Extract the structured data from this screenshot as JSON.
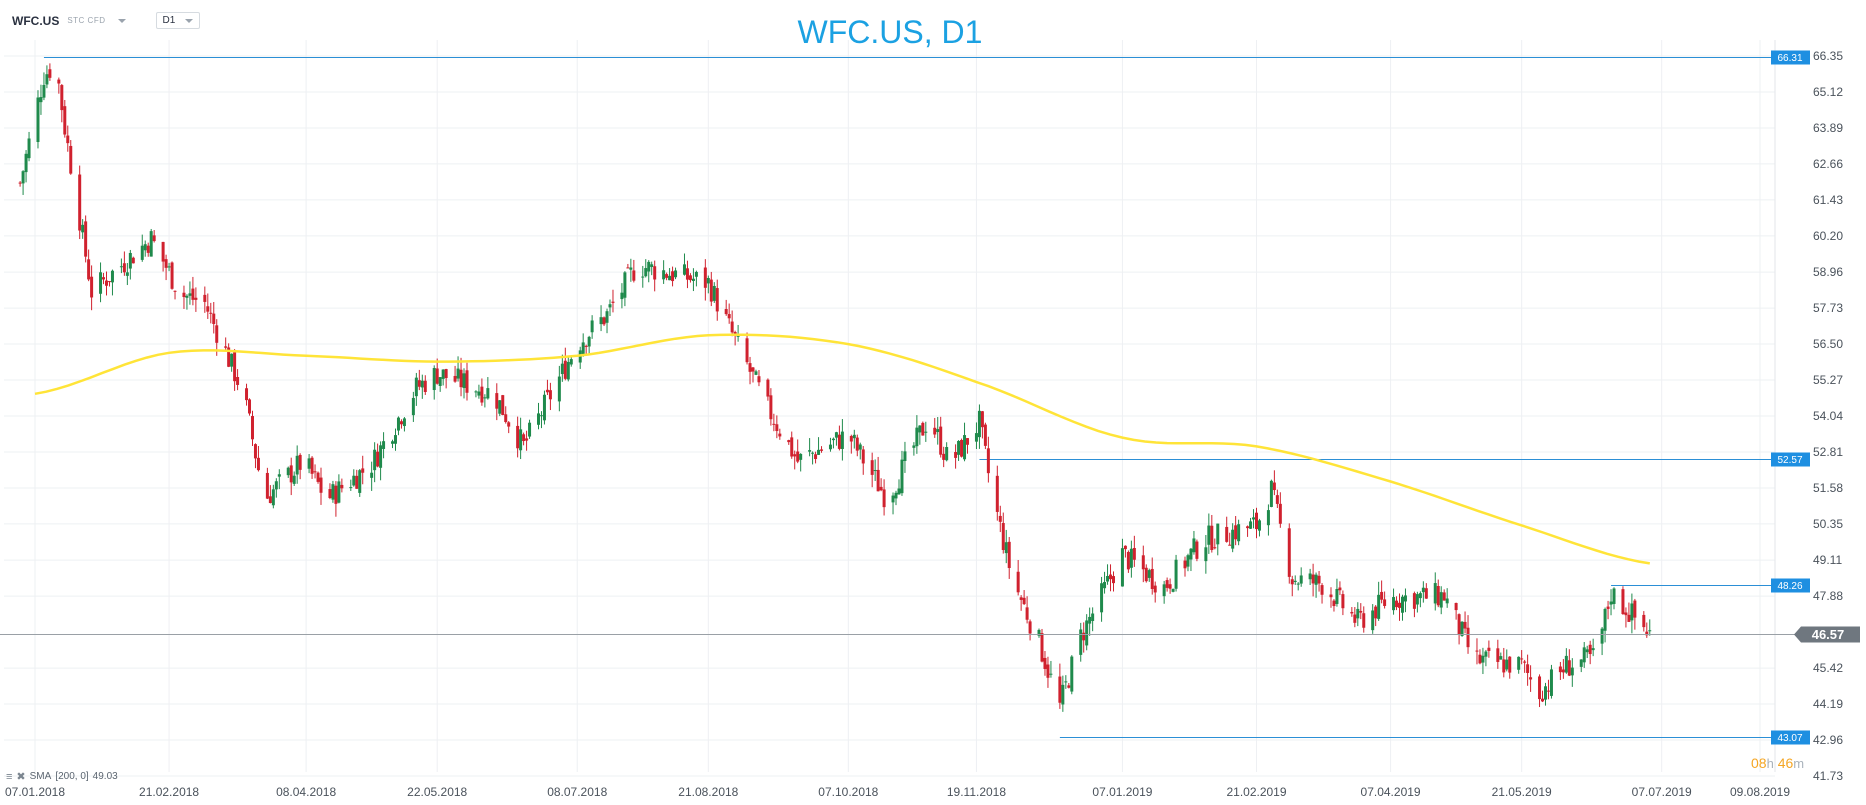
{
  "header": {
    "symbol": "WFC.US",
    "tag": "STC CFD",
    "timeframe": "D1",
    "title": "WFC.US, D1"
  },
  "legend": {
    "indicator": "SMA",
    "params": "[200, 0]",
    "value": "49.03"
  },
  "timer": {
    "hours": "08",
    "hours_unit": "h",
    "minutes": "46",
    "minutes_unit": "m"
  },
  "colors": {
    "up": "#1f8a4c",
    "down": "#d0212e",
    "sma": "#ffe438",
    "level": "#2b8fd6",
    "price_line": "#9aa0a6",
    "price_tag": "#6f777f"
  },
  "chart_data": {
    "type": "candlestick",
    "title": "WFC.US, D1",
    "y_ticks": [
      "66.35",
      "65.12",
      "63.89",
      "62.66",
      "61.43",
      "60.20",
      "58.96",
      "57.73",
      "56.50",
      "55.27",
      "54.04",
      "52.81",
      "51.58",
      "50.35",
      "49.11",
      "47.88",
      "45.42",
      "44.19",
      "42.96",
      "41.73"
    ],
    "ylim": [
      41.73,
      66.35
    ],
    "x_ticks": [
      "07.01.2018",
      "21.02.2018",
      "08.04.2018",
      "22.05.2018",
      "08.07.2018",
      "21.08.2018",
      "07.10.2018",
      "19.11.2018",
      "07.01.2019",
      "21.02.2019",
      "07.04.2019",
      "21.05.2019",
      "07.07.2019",
      "09.08.2019"
    ],
    "levels": [
      {
        "label": "66.31",
        "value": 66.31,
        "from": "10.01.2018"
      },
      {
        "label": "52.57",
        "value": 52.57,
        "from": "20.11.2018"
      },
      {
        "label": "48.26",
        "value": 48.26,
        "from": "20.06.2019"
      },
      {
        "label": "43.07",
        "value": 43.07,
        "from": "17.12.2018"
      }
    ],
    "last_price": {
      "label": "46.57",
      "value": 46.57
    },
    "sma": {
      "name": "SMA [200, 0]",
      "value": 49.03,
      "x_dates": [
        "07.01.2018",
        "21.02.2018",
        "08.04.2018",
        "22.05.2018",
        "08.07.2018",
        "21.08.2018",
        "07.10.2018",
        "19.11.2018",
        "07.01.2019",
        "21.02.2019",
        "07.04.2019",
        "21.05.2019",
        "03.07.2019"
      ],
      "values": [
        54.8,
        56.2,
        56.1,
        55.9,
        56.1,
        56.8,
        56.5,
        55.2,
        53.3,
        53.0,
        51.8,
        50.3,
        49.0
      ]
    },
    "price_anchors": {
      "x_dates": [
        "02.01.2018",
        "10.01.2018",
        "14.01.2018",
        "17.01.2018",
        "26.01.2018",
        "15.02.2018",
        "25.02.2018",
        "05.03.2018",
        "18.03.2018",
        "25.03.2018",
        "07.04.2018",
        "15.04.2018",
        "30.04.2018",
        "15.05.2018",
        "22.05.2018",
        "10.06.2018",
        "20.06.2018",
        "08.07.2018",
        "18.07.2018",
        "28.07.2018",
        "21.08.2018",
        "31.08.2018",
        "10.09.2018",
        "20.09.2018",
        "07.10.2018",
        "20.10.2018",
        "03.11.2018",
        "10.11.2018",
        "20.11.2018",
        "24.11.2018",
        "01.12.2018",
        "10.12.2018",
        "17.12.2018",
        "24.12.2018",
        "07.01.2019",
        "21.01.2019",
        "03.02.2019",
        "21.02.2019",
        "26.02.2019",
        "05.03.2019",
        "15.03.2019",
        "27.03.2019",
        "07.04.2019",
        "25.04.2019",
        "05.05.2019",
        "21.05.2019",
        "27.05.2019",
        "05.06.2019",
        "15.06.2019",
        "20.06.2019",
        "03.07.2019"
      ],
      "closes": [
        62.0,
        65.7,
        66.1,
        63.9,
        58.3,
        60.1,
        58.2,
        57.9,
        54.8,
        51.2,
        52.5,
        51.2,
        52.4,
        55.0,
        55.5,
        54.8,
        53.0,
        56.5,
        57.5,
        59.2,
        58.6,
        56.4,
        54.3,
        52.5,
        53.4,
        51.2,
        54.0,
        52.4,
        53.8,
        51.5,
        48.5,
        46.3,
        44.1,
        46.5,
        49.3,
        48.2,
        49.8,
        50.3,
        51.5,
        48.5,
        48.3,
        47.0,
        47.8,
        47.9,
        45.7,
        45.5,
        44.6,
        45.5,
        45.8,
        48.0,
        46.6
      ]
    }
  }
}
